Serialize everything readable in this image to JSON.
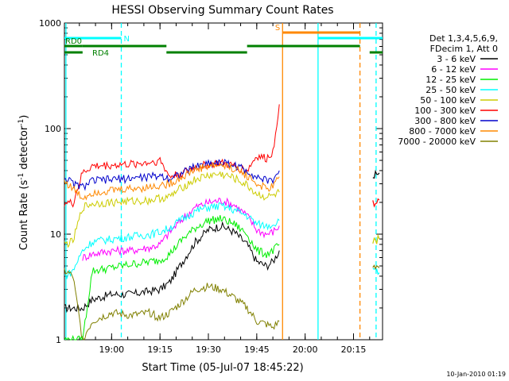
{
  "chart_data": {
    "type": "line",
    "title": "HESSI Observing Summary Count Rates",
    "xlabel": "Start Time (05-Jul-07 18:45:22)",
    "ylabel_main": "Count Rate (s",
    "ylabel_sup1": "-1",
    "ylabel_mid": " detector",
    "ylabel_sup2": "-1",
    "ylabel_end": ")",
    "yscale": "log",
    "xlim": [
      "18:45:22",
      "20:24:00"
    ],
    "ylim": [
      1,
      1000
    ],
    "x_ticks": [
      "19:00",
      "19:15",
      "19:30",
      "19:45",
      "20:00",
      "20:15"
    ],
    "y_ticks": [
      "1",
      "10",
      "100",
      "1000"
    ],
    "legend_header": [
      "Det 1,3,4,5,6,9,",
      "FDecim 1, Att 0"
    ],
    "series": [
      {
        "name": "3 - 6 keV",
        "color": "#000000",
        "points": [
          [
            "18:45:22",
            2.0
          ],
          [
            "18:51",
            2.0
          ],
          [
            "18:54",
            2.4
          ],
          [
            "19:00",
            2.7
          ],
          [
            "19:06",
            2.7
          ],
          [
            "19:12",
            2.9
          ],
          [
            "19:15",
            3.0
          ],
          [
            "19:18",
            3.5
          ],
          [
            "19:22",
            5.5
          ],
          [
            "19:26",
            8.5
          ],
          [
            "19:30",
            11.0
          ],
          [
            "19:34",
            12.0
          ],
          [
            "19:38",
            10.5
          ],
          [
            "19:42",
            8.0
          ],
          [
            "19:45",
            5.5
          ],
          [
            "19:48",
            5.0
          ],
          [
            "19:50",
            5.5
          ],
          [
            "19:52",
            7.0
          ]
        ]
      },
      {
        "name": "6 - 12 keV",
        "color": "#ff00ff",
        "points": [
          [
            "18:51",
            6.0
          ],
          [
            "18:54",
            6.5
          ],
          [
            "19:00",
            7.0
          ],
          [
            "19:06",
            7.0
          ],
          [
            "19:12",
            7.5
          ],
          [
            "19:15",
            8.0
          ],
          [
            "19:18",
            10.5
          ],
          [
            "19:22",
            14.0
          ],
          [
            "19:26",
            18.0
          ],
          [
            "19:30",
            20.0
          ],
          [
            "19:34",
            21.0
          ],
          [
            "19:38",
            19.0
          ],
          [
            "19:42",
            15.0
          ],
          [
            "19:45",
            11.0
          ],
          [
            "19:48",
            10.0
          ],
          [
            "19:50",
            10.5
          ],
          [
            "19:52",
            12.0
          ]
        ]
      },
      {
        "name": "12 - 25 keV",
        "color": "#00ee00",
        "points": [
          [
            "18:45:22",
            1.0
          ],
          [
            "18:51",
            1.0
          ],
          [
            "18:54",
            4.5
          ],
          [
            "19:00",
            4.8
          ],
          [
            "19:06",
            5.2
          ],
          [
            "19:12",
            5.5
          ],
          [
            "19:15",
            5.7
          ],
          [
            "19:18",
            6.5
          ],
          [
            "19:22",
            9.0
          ],
          [
            "19:26",
            11.5
          ],
          [
            "19:30",
            13.5
          ],
          [
            "19:34",
            14.0
          ],
          [
            "19:38",
            12.5
          ],
          [
            "19:42",
            10.0
          ],
          [
            "19:45",
            7.0
          ],
          [
            "19:48",
            6.5
          ],
          [
            "19:50",
            7.0
          ],
          [
            "19:52",
            8.0
          ]
        ]
      },
      {
        "name": "25 - 50 keV",
        "color": "#00ffff",
        "points": [
          [
            "18:45:22",
            4.0
          ],
          [
            "18:48",
            4.5
          ],
          [
            "18:51",
            7.0
          ],
          [
            "18:54",
            8.5
          ],
          [
            "19:00",
            9.0
          ],
          [
            "19:06",
            9.5
          ],
          [
            "19:12",
            10.0
          ],
          [
            "19:15",
            10.5
          ],
          [
            "19:18",
            11.5
          ],
          [
            "19:22",
            14.0
          ],
          [
            "19:26",
            16.5
          ],
          [
            "19:30",
            18.0
          ],
          [
            "19:34",
            18.5
          ],
          [
            "19:38",
            17.0
          ],
          [
            "19:42",
            15.0
          ],
          [
            "19:45",
            12.5
          ],
          [
            "19:48",
            12.0
          ],
          [
            "19:50",
            12.5
          ],
          [
            "19:52",
            13.5
          ]
        ]
      },
      {
        "name": "50 - 100 keV",
        "color": "#cccc00",
        "points": [
          [
            "18:45:22",
            8.0
          ],
          [
            "18:48",
            8.5
          ],
          [
            "18:51",
            18.0
          ],
          [
            "18:54",
            19.5
          ],
          [
            "19:00",
            20.0
          ],
          [
            "19:06",
            20.5
          ],
          [
            "19:12",
            21.0
          ],
          [
            "19:15",
            22.0
          ],
          [
            "19:18",
            22.5
          ],
          [
            "19:22",
            28.0
          ],
          [
            "19:26",
            33.0
          ],
          [
            "19:30",
            36.0
          ],
          [
            "19:34",
            37.0
          ],
          [
            "19:38",
            34.0
          ],
          [
            "19:42",
            29.0
          ],
          [
            "19:45",
            24.0
          ],
          [
            "19:48",
            22.5
          ],
          [
            "19:50",
            23.0
          ],
          [
            "19:52",
            25.0
          ]
        ]
      },
      {
        "name": "100 - 300 keV",
        "color": "#ff0000",
        "points": [
          [
            "18:45:22",
            20.0
          ],
          [
            "18:48",
            19.5
          ],
          [
            "18:51",
            38.0
          ],
          [
            "18:54",
            44.0
          ],
          [
            "19:00",
            45.0
          ],
          [
            "19:06",
            46.0
          ],
          [
            "19:12",
            48.0
          ],
          [
            "19:15",
            50.0
          ],
          [
            "19:18",
            35.0
          ],
          [
            "19:22",
            38.0
          ],
          [
            "19:26",
            43.0
          ],
          [
            "19:30",
            46.0
          ],
          [
            "19:34",
            47.0
          ],
          [
            "19:38",
            44.0
          ],
          [
            "19:42",
            40.0
          ],
          [
            "19:45",
            55.0
          ],
          [
            "19:48",
            52.0
          ],
          [
            "19:50",
            60.0
          ],
          [
            "19:52",
            170.0
          ]
        ]
      },
      {
        "name": "300 - 800 keV",
        "color": "#0000cc",
        "points": [
          [
            "18:45:22",
            35.0
          ],
          [
            "18:48",
            30.0
          ],
          [
            "18:51",
            28.0
          ],
          [
            "18:54",
            32.0
          ],
          [
            "19:00",
            33.0
          ],
          [
            "19:06",
            34.0
          ],
          [
            "19:12",
            35.0
          ],
          [
            "19:15",
            36.0
          ],
          [
            "19:18",
            34.0
          ],
          [
            "19:22",
            38.0
          ],
          [
            "19:26",
            44.0
          ],
          [
            "19:30",
            47.0
          ],
          [
            "19:34",
            48.0
          ],
          [
            "19:38",
            45.0
          ],
          [
            "19:42",
            40.0
          ],
          [
            "19:45",
            35.0
          ],
          [
            "19:48",
            32.0
          ],
          [
            "19:50",
            33.0
          ],
          [
            "19:52",
            40.0
          ]
        ]
      },
      {
        "name": "800 - 7000 keV",
        "color": "#ff8800",
        "points": [
          [
            "18:45:22",
            32.0
          ],
          [
            "18:48",
            27.0
          ],
          [
            "18:51",
            22.0
          ],
          [
            "18:54",
            25.0
          ],
          [
            "19:00",
            26.0
          ],
          [
            "19:06",
            27.0
          ],
          [
            "19:12",
            28.0
          ],
          [
            "19:15",
            29.0
          ],
          [
            "19:18",
            30.0
          ],
          [
            "19:22",
            35.0
          ],
          [
            "19:26",
            41.0
          ],
          [
            "19:30",
            44.0
          ],
          [
            "19:34",
            45.0
          ],
          [
            "19:38",
            42.0
          ],
          [
            "19:42",
            36.0
          ],
          [
            "19:45",
            30.0
          ],
          [
            "19:48",
            27.0
          ],
          [
            "19:50",
            28.0
          ],
          [
            "19:52",
            35.0
          ]
        ]
      },
      {
        "name": "7000 - 20000 keV",
        "color": "#808000",
        "points": [
          [
            "18:45:22",
            4.5
          ],
          [
            "18:48",
            4.0
          ],
          [
            "18:51",
            1.0
          ],
          [
            "18:54",
            1.5
          ],
          [
            "19:00",
            1.8
          ],
          [
            "19:06",
            1.7
          ],
          [
            "19:12",
            1.8
          ],
          [
            "19:15",
            1.6
          ],
          [
            "19:18",
            1.8
          ],
          [
            "19:22",
            2.3
          ],
          [
            "19:26",
            3.0
          ],
          [
            "19:30",
            3.2
          ],
          [
            "19:34",
            3.0
          ],
          [
            "19:38",
            2.5
          ],
          [
            "19:42",
            2.0
          ],
          [
            "19:45",
            1.5
          ],
          [
            "19:48",
            1.4
          ],
          [
            "19:50",
            1.3
          ],
          [
            "19:52",
            1.5
          ]
        ]
      }
    ],
    "post_gap_series": [
      {
        "color": "#000000",
        "points": [
          [
            "20:21",
            36.0
          ],
          [
            "20:23",
            38.0
          ]
        ]
      },
      {
        "color": "#ff0000",
        "points": [
          [
            "20:21",
            20.0
          ],
          [
            "20:23",
            21.0
          ]
        ]
      },
      {
        "color": "#cccc00",
        "points": [
          [
            "20:21",
            8.5
          ],
          [
            "20:23",
            9.0
          ]
        ]
      },
      {
        "color": "#00ffff",
        "points": [
          [
            "20:21",
            4.5
          ],
          [
            "20:23",
            4.3
          ]
        ]
      },
      {
        "color": "#808000",
        "points": [
          [
            "20:21",
            5.0
          ],
          [
            "20:23",
            4.8
          ]
        ]
      }
    ],
    "vertical_lines": [
      {
        "time": "18:45:50",
        "color": "#00ffff",
        "style": "solid"
      },
      {
        "time": "19:03",
        "color": "#00ffff",
        "style": "dashed"
      },
      {
        "time": "19:53",
        "color": "#ff8800",
        "style": "solid"
      },
      {
        "time": "20:04",
        "color": "#00ffff",
        "style": "solid"
      },
      {
        "time": "20:17",
        "color": "#ff8800",
        "style": "dashed"
      },
      {
        "time": "20:22",
        "color": "#00ffff",
        "style": "dashed"
      }
    ],
    "state_bars": [
      {
        "label": "N",
        "label_color": "#00ffff",
        "color": "#00ffff",
        "segments": [
          [
            "18:45:22",
            "19:03"
          ]
        ],
        "level": 1
      },
      {
        "label": "S",
        "label_color": "#ff8800",
        "color": "#ff8800",
        "segments": [
          [
            "19:53",
            "20:17"
          ]
        ],
        "level": 2
      },
      {
        "label": "",
        "label_color": "#00ffff",
        "color": "#00ffff",
        "segments": [
          [
            "20:04",
            "20:24"
          ]
        ],
        "level": 1
      },
      {
        "label": "RD0",
        "label_color": "#008000",
        "color": "#008000",
        "segments": [
          [
            "18:45:22",
            "18:51"
          ],
          [
            "18:51",
            "19:17"
          ],
          [
            "19:42",
            "20:17"
          ]
        ],
        "level": 3
      },
      {
        "label": "RD4",
        "label_color": "#008000",
        "color": "#008000",
        "segments": [
          [
            "18:45:22",
            "18:51"
          ],
          [
            "19:17",
            "19:42"
          ],
          [
            "20:20",
            "20:24"
          ]
        ],
        "level": 4
      }
    ],
    "footer_date": "10-Jan-2010 01:19"
  }
}
